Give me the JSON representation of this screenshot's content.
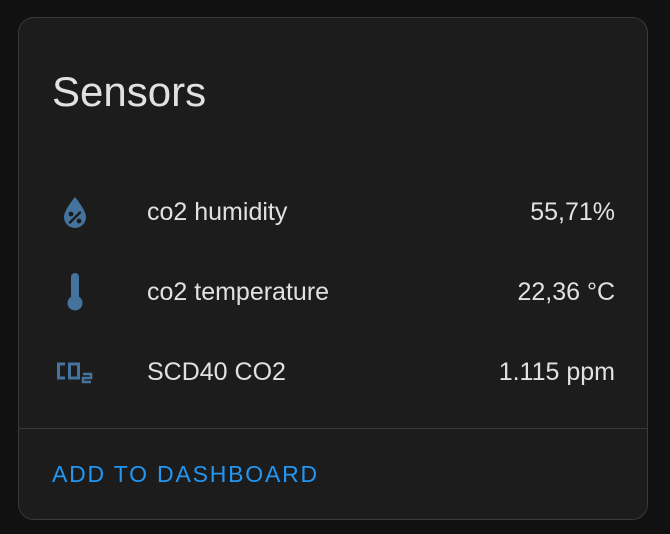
{
  "card": {
    "title": "Sensors",
    "entities": [
      {
        "icon": "water-percent-icon",
        "label": "co2 humidity",
        "value": "55,71%"
      },
      {
        "icon": "thermometer-icon",
        "label": "co2 temperature",
        "value": "22,36 °C"
      },
      {
        "icon": "molecule-co2-icon",
        "label": "SCD40 CO2",
        "value": "1.115 ppm"
      }
    ],
    "action_label": "ADD TO DASHBOARD"
  },
  "colors": {
    "background": "#111111",
    "card": "#1c1c1c",
    "text": "#e1e1e1",
    "icon": "#44739e",
    "accent": "#2196f3",
    "border": "#3a3a3a"
  }
}
